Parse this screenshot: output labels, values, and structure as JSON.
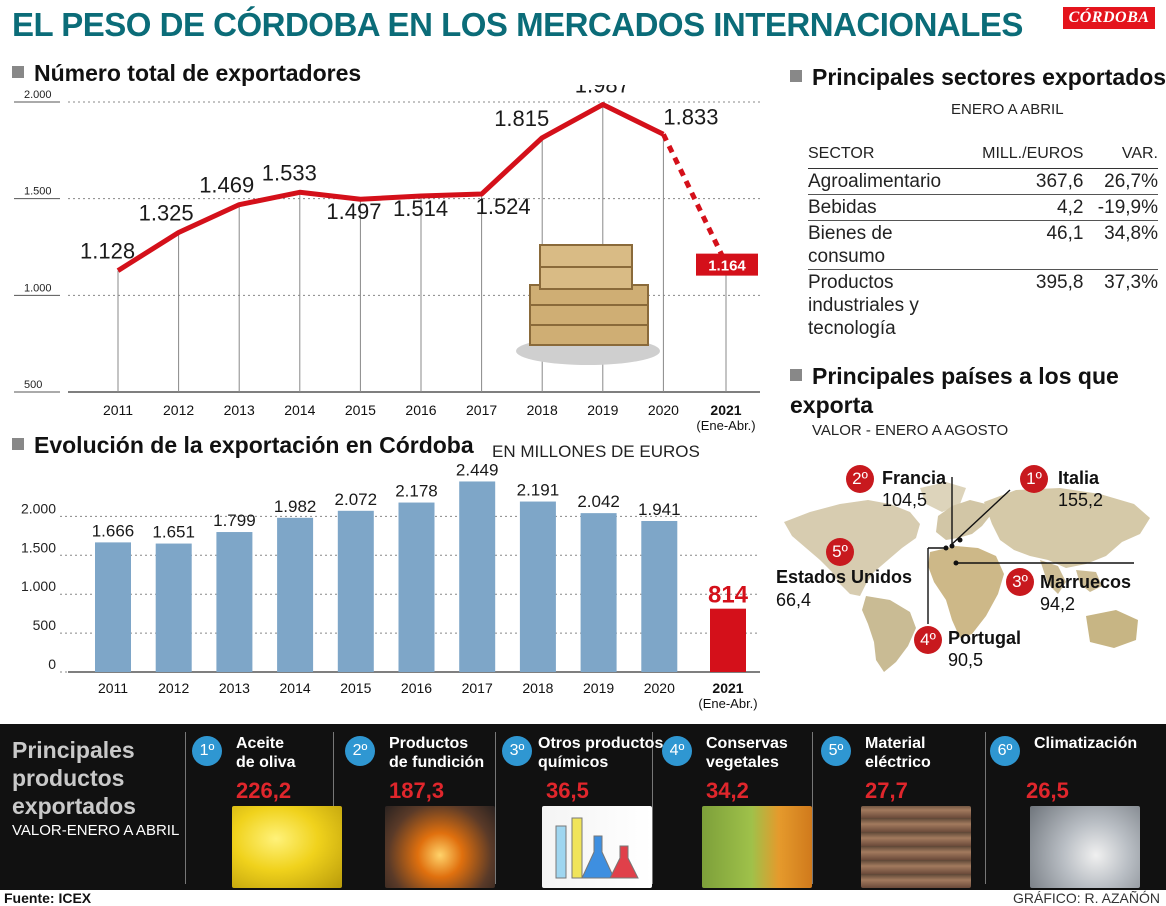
{
  "header": {
    "title": "EL PESO DE CÓRDOBA EN LOS MERCADOS INTERNACIONALES",
    "logo": "CÓRDOBA"
  },
  "colors": {
    "title": "#0b6c78",
    "line": "#d4101a",
    "bar": "#7ea6c8",
    "bar_highlight": "#d4101a",
    "badge": "#c8191e",
    "product_badge": "#2f97d2",
    "product_value": "#e0262c"
  },
  "chart_data": [
    {
      "type": "line",
      "title": "Número total de exportadores",
      "categories": [
        "2011",
        "2012",
        "2013",
        "2014",
        "2015",
        "2016",
        "2017",
        "2018",
        "2019",
        "2020"
      ],
      "values": [
        1128,
        1325,
        1469,
        1533,
        1497,
        1514,
        1524,
        1815,
        1987,
        1833
      ],
      "value_labels": [
        "1.128",
        "1.325",
        "1.469",
        "1.533",
        "1.497",
        "1.514",
        "1.524",
        "1.815",
        "1.987",
        "1.833"
      ],
      "projection": {
        "category": "2021",
        "category_note": "(Ene-Abr.)",
        "value": 1164,
        "label": "1.164",
        "style": "dashed"
      },
      "yticks": [
        {
          "value": 500,
          "label": "500"
        },
        {
          "value": 1000,
          "label": "1.000"
        },
        {
          "value": 1500,
          "label": "1.500"
        },
        {
          "value": 2000,
          "label": "2.000"
        }
      ],
      "ylim": [
        500,
        2000
      ],
      "grid": true
    },
    {
      "type": "bar",
      "title": "Evolución de la exportación en Córdoba",
      "subtitle": "EN MILLONES DE EUROS",
      "categories": [
        "2011",
        "2012",
        "2013",
        "2014",
        "2015",
        "2016",
        "2017",
        "2018",
        "2019",
        "2020",
        "2021"
      ],
      "category_note": "(Ene-Abr.)",
      "values": [
        1666,
        1651,
        1799,
        1982,
        2072,
        2178,
        2449,
        2191,
        2042,
        1941,
        814
      ],
      "value_labels": [
        "1.666",
        "1.651",
        "1.799",
        "1.982",
        "2.072",
        "2.178",
        "2.449",
        "2.191",
        "2.042",
        "1.941",
        "814"
      ],
      "highlight_index": 10,
      "yticks": [
        {
          "value": 0,
          "label": "0"
        },
        {
          "value": 500,
          "label": "500"
        },
        {
          "value": 1000,
          "label": "1.000"
        },
        {
          "value": 1500,
          "label": "1.500"
        },
        {
          "value": 2000,
          "label": "2.000"
        }
      ],
      "ylim": [
        0,
        2500
      ],
      "grid": true
    },
    {
      "type": "table",
      "title": "Principales sectores exportados",
      "subtitle": "ENERO A ABRIL",
      "columns": [
        "SECTOR",
        "MILL./EUROS",
        "VAR."
      ],
      "rows": [
        [
          "Agroalimentario",
          "367,6",
          "26,7%"
        ],
        [
          "Bebidas",
          "4,2",
          "-19,9%"
        ],
        [
          "Bienes de consumo",
          "46,1",
          "34,8%"
        ],
        [
          "Productos industriales y tecnología",
          "395,8",
          "37,3%"
        ]
      ]
    }
  ],
  "countries": {
    "title": "Principales países a los que exporta",
    "subtitle": "VALOR - ENERO A AGOSTO",
    "items": [
      {
        "rank": "1º",
        "name": "Italia",
        "value": "155,2"
      },
      {
        "rank": "2º",
        "name": "Francia",
        "value": "104,5"
      },
      {
        "rank": "3º",
        "name": "Marruecos",
        "value": "94,2"
      },
      {
        "rank": "4º",
        "name": "Portugal",
        "value": "90,5"
      },
      {
        "rank": "5º",
        "name": "Estados Unidos",
        "value": "66,4"
      }
    ]
  },
  "products": {
    "title": "Principales productos exportados",
    "subtitle": "VALOR-ENERO A ABRIL",
    "items": [
      {
        "rank": "1º",
        "name1": "Aceite",
        "name2": "de oliva",
        "value": "226,2",
        "photo": "olive-oil"
      },
      {
        "rank": "2º",
        "name1": "Productos",
        "name2": "de fundición",
        "value": "187,3",
        "photo": "foundry"
      },
      {
        "rank": "3º",
        "name1": "Otros productos",
        "name2": "químicos",
        "value": "36,5",
        "photo": "chemicals"
      },
      {
        "rank": "4º",
        "name1": "Conservas",
        "name2": "vegetales",
        "value": "34,2",
        "photo": "preserves"
      },
      {
        "rank": "5º",
        "name1": "Material",
        "name2": "eléctrico",
        "value": "27,7",
        "photo": "electrical"
      },
      {
        "rank": "6º",
        "name1": "Climatización",
        "name2": "",
        "value": "26,5",
        "photo": "hvac"
      }
    ]
  },
  "footer": {
    "source": "Fuente: ICEX",
    "credit": "GRÁFICO: R. AZAÑÓN"
  }
}
